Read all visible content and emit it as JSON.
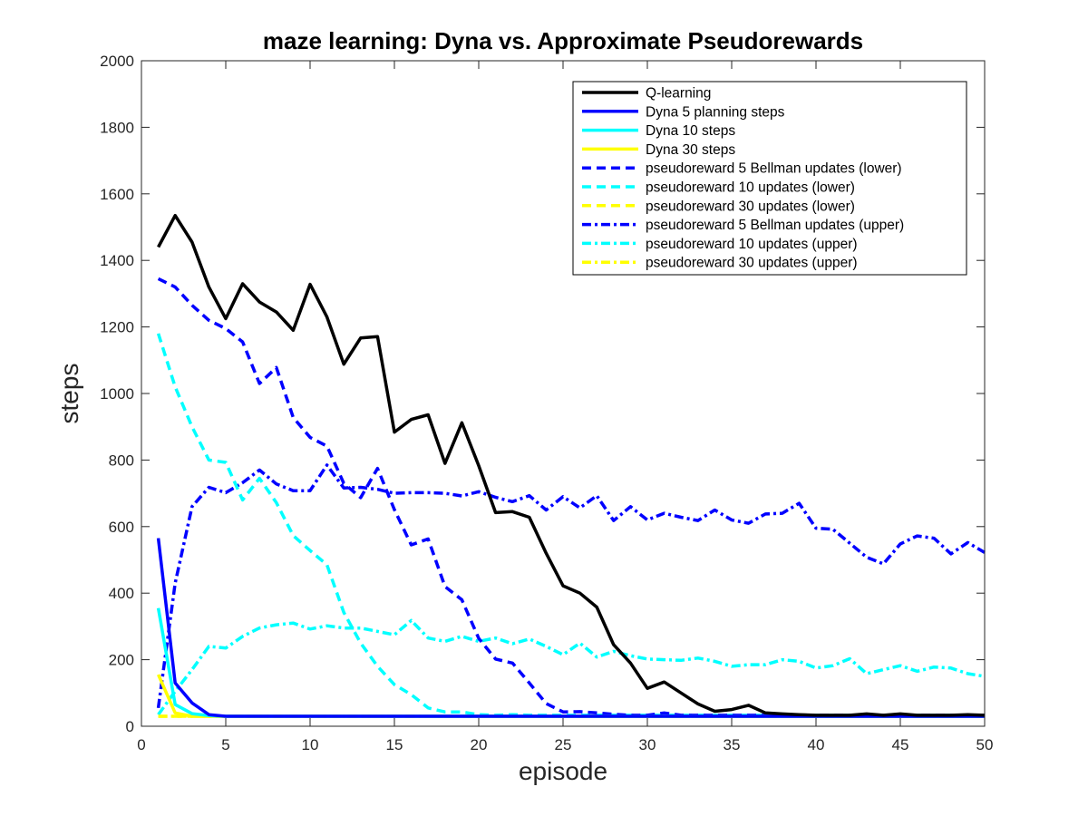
{
  "chart_data": {
    "type": "line",
    "title": "maze learning: Dyna vs. Approximate Pseudorewards",
    "xlabel": "episode",
    "ylabel": "steps",
    "xlim": [
      0,
      50
    ],
    "ylim": [
      0,
      2000
    ],
    "xticks": [
      "0",
      "5",
      "10",
      "15",
      "20",
      "25",
      "30",
      "35",
      "40",
      "45",
      "50"
    ],
    "yticks": [
      "0",
      "200",
      "400",
      "600",
      "800",
      "1000",
      "1200",
      "1400",
      "1600",
      "1800",
      "2000"
    ],
    "grid": false,
    "legend_position": "top-right",
    "x": [
      1,
      2,
      3,
      4,
      5,
      6,
      7,
      8,
      9,
      10,
      11,
      12,
      13,
      14,
      15,
      16,
      17,
      18,
      19,
      20,
      21,
      22,
      23,
      24,
      25,
      26,
      27,
      28,
      29,
      30,
      31,
      32,
      33,
      34,
      35,
      36,
      37,
      38,
      39,
      40,
      41,
      42,
      43,
      44,
      45,
      46,
      47,
      48,
      49,
      50
    ],
    "series": [
      {
        "name": "Q-learning",
        "color": "#000000",
        "style": "solid",
        "values": [
          1440,
          1535,
          1455,
          1320,
          1225,
          1330,
          1275,
          1245,
          1190,
          1328,
          1230,
          1088,
          1167,
          1171,
          884,
          922,
          936,
          790,
          912,
          783,
          642,
          645,
          628,
          520,
          422,
          400,
          358,
          245,
          190,
          114,
          133,
          100,
          67,
          45,
          50,
          63,
          40,
          37,
          35,
          33,
          33,
          33,
          37,
          33,
          37,
          33,
          33,
          33,
          35,
          33
        ]
      },
      {
        "name": "Dyna 5 planning steps",
        "color": "#0000ff",
        "style": "solid",
        "values": [
          565,
          130,
          70,
          35,
          30,
          30,
          30,
          30,
          30,
          30,
          30,
          30,
          30,
          30,
          30,
          30,
          30,
          30,
          30,
          30,
          30,
          30,
          30,
          30,
          30,
          30,
          30,
          30,
          30,
          30,
          30,
          30,
          30,
          30,
          30,
          30,
          30,
          30,
          30,
          30,
          30,
          30,
          30,
          30,
          30,
          30,
          30,
          30,
          30,
          30
        ]
      },
      {
        "name": "Dyna 10 steps",
        "color": "#00ffff",
        "style": "solid",
        "values": [
          355,
          65,
          38,
          32,
          30,
          30,
          30,
          30,
          30,
          30,
          30,
          30,
          30,
          30,
          30,
          30,
          30,
          30,
          30,
          30,
          30,
          30,
          30,
          30,
          30,
          30,
          30,
          30,
          30,
          30,
          30,
          30,
          30,
          30,
          30,
          30,
          30,
          30,
          30,
          30,
          30,
          30,
          30,
          30,
          30,
          30,
          30,
          30,
          30,
          30
        ]
      },
      {
        "name": "Dyna 30 steps",
        "color": "#ffff00",
        "style": "solid",
        "values": [
          155,
          40,
          30,
          30,
          30,
          30,
          30,
          30,
          30,
          30,
          30,
          30,
          30,
          30,
          30,
          30,
          30,
          30,
          30,
          30,
          30,
          30,
          30,
          30,
          30,
          30,
          30,
          30,
          30,
          30,
          30,
          30,
          30,
          30,
          30,
          30,
          30,
          30,
          30,
          30,
          30,
          30,
          30,
          30,
          30,
          30,
          30,
          30,
          30,
          30
        ]
      },
      {
        "name": "pseudoreward 5 Bellman updates (lower)",
        "color": "#0000ff",
        "style": "dashed",
        "values": [
          1345,
          1320,
          1265,
          1220,
          1195,
          1155,
          1030,
          1078,
          928,
          868,
          842,
          730,
          687,
          775,
          651,
          545,
          563,
          420,
          380,
          264,
          202,
          190,
          130,
          68,
          43,
          44,
          40,
          36,
          33,
          33,
          40,
          33,
          33,
          33,
          33,
          33,
          33,
          33,
          33,
          33,
          33,
          33,
          33,
          33,
          33,
          33,
          33,
          33,
          33,
          33
        ]
      },
      {
        "name": "pseudoreward 10 updates (lower)",
        "color": "#00ffff",
        "style": "dashed",
        "values": [
          1180,
          1020,
          900,
          800,
          793,
          680,
          745,
          672,
          573,
          528,
          485,
          342,
          250,
          180,
          125,
          95,
          55,
          43,
          43,
          35,
          33,
          35,
          33,
          33,
          33,
          33,
          33,
          33,
          33,
          33,
          33,
          33,
          33,
          33,
          33,
          33,
          33,
          33,
          33,
          33,
          33,
          33,
          33,
          33,
          33,
          33,
          33,
          33,
          33,
          33
        ]
      },
      {
        "name": "pseudoreward 30 updates (lower)",
        "color": "#ffff00",
        "style": "dashed",
        "values": [
          30,
          30,
          30,
          30,
          30,
          30,
          30,
          30,
          30,
          30,
          30,
          30,
          30,
          30,
          30,
          30,
          30,
          30,
          30,
          30,
          30,
          30,
          30,
          30,
          30,
          30,
          30,
          30,
          30,
          30,
          30,
          30,
          30,
          30,
          30,
          30,
          30,
          30,
          30,
          30,
          30,
          30,
          30,
          30,
          30,
          30,
          30,
          30,
          30,
          30
        ]
      },
      {
        "name": "pseudoreward 5 Bellman updates (upper)",
        "color": "#0000ff",
        "style": "dashdot",
        "values": [
          55,
          430,
          660,
          718,
          702,
          732,
          770,
          728,
          708,
          708,
          785,
          716,
          718,
          712,
          700,
          702,
          702,
          700,
          692,
          705,
          688,
          675,
          693,
          650,
          690,
          656,
          693,
          618,
          660,
          620,
          640,
          628,
          618,
          650,
          620,
          610,
          638,
          640,
          670,
          595,
          592,
          550,
          508,
          488,
          548,
          572,
          565,
          518,
          552,
          522
        ]
      },
      {
        "name": "pseudoreward 10 updates (upper)",
        "color": "#00ffff",
        "style": "dashdot",
        "values": [
          35,
          105,
          170,
          240,
          235,
          270,
          295,
          305,
          310,
          292,
          302,
          295,
          295,
          285,
          275,
          318,
          265,
          255,
          270,
          255,
          265,
          248,
          262,
          240,
          215,
          250,
          208,
          225,
          212,
          202,
          200,
          198,
          205,
          195,
          180,
          185,
          185,
          200,
          195,
          175,
          182,
          203,
          158,
          170,
          182,
          165,
          178,
          175,
          158,
          150
        ]
      },
      {
        "name": "pseudoreward 30 updates (upper)",
        "color": "#ffff00",
        "style": "dashdot",
        "values": [
          30,
          30,
          30,
          30,
          30,
          30,
          30,
          30,
          30,
          30,
          30,
          30,
          30,
          30,
          30,
          30,
          30,
          30,
          30,
          30,
          30,
          30,
          30,
          30,
          30,
          30,
          30,
          30,
          30,
          30,
          30,
          30,
          30,
          30,
          30,
          30,
          30,
          30,
          30,
          30,
          30,
          30,
          30,
          30,
          30,
          30,
          30,
          30,
          30,
          30
        ]
      }
    ]
  }
}
